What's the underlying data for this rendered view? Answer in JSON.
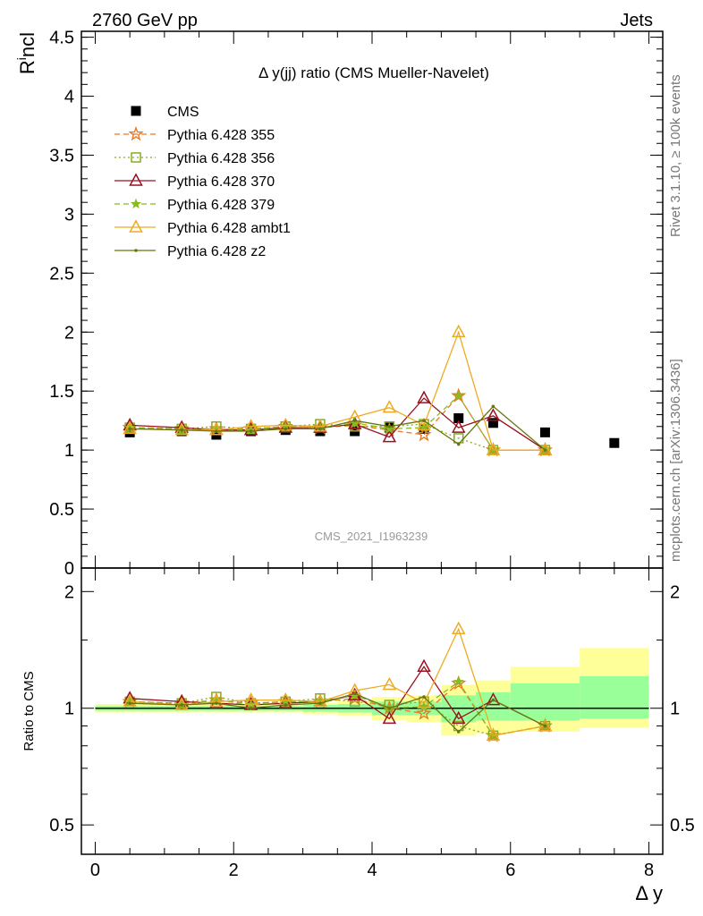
{
  "header": {
    "left": "2760 GeV pp",
    "right": "Jets"
  },
  "side_text": {
    "upper": "Rivet 3.1.10, ≥ 100k events",
    "lower": "mcplots.cern.ch [arXiv:1306.3436]"
  },
  "watermark": "CMS_2021_I1963239",
  "chart_data": [
    {
      "type": "line",
      "panel": "main",
      "title": "Δ y(jj) ratio (CMS Mueller-Navelet)",
      "xlabel": "Δ y",
      "ylabel": "R^i ncl",
      "xlim": [
        -0.2,
        8.2
      ],
      "ylim": [
        0,
        4.55
      ],
      "yticks": [
        "0",
        "0.5",
        "1",
        "1.5",
        "2",
        "2.5",
        "3",
        "3.5",
        "4",
        "4.5"
      ],
      "legend_position": "top-left",
      "series": [
        {
          "name": "CMS",
          "style": "square",
          "color": "#000000",
          "x": [
            0.5,
            1.25,
            1.75,
            2.25,
            2.75,
            3.25,
            3.75,
            4.25,
            4.75,
            5.25,
            5.75,
            6.5,
            7.5
          ],
          "y": [
            1.15,
            1.16,
            1.13,
            1.16,
            1.17,
            1.16,
            1.16,
            1.19,
            1.18,
            1.27,
            1.23,
            1.15,
            1.06
          ]
        },
        {
          "name": "Pythia 6.428 355",
          "style": "star",
          "dash": "dashed",
          "color": "#ee7722",
          "x": [
            0.5,
            1.25,
            1.75,
            2.25,
            2.75,
            3.25,
            3.75,
            4.25,
            4.75,
            5.25,
            5.75,
            6.5
          ],
          "y": [
            1.19,
            1.18,
            1.18,
            1.18,
            1.2,
            1.19,
            1.21,
            1.17,
            1.13,
            1.46,
            1.0,
            1.0
          ]
        },
        {
          "name": "Pythia 6.428 356",
          "style": "square-open",
          "dash": "dotted",
          "color": "#88aa22",
          "x": [
            0.5,
            1.25,
            1.75,
            2.25,
            2.75,
            3.25,
            3.75,
            4.25,
            4.75,
            5.25,
            5.75,
            6.5
          ],
          "y": [
            1.19,
            1.18,
            1.2,
            1.18,
            1.2,
            1.22,
            1.2,
            1.2,
            1.22,
            1.1,
            1.0,
            1.0
          ]
        },
        {
          "name": "Pythia 6.428 370",
          "style": "triangle-open",
          "dash": "solid",
          "color": "#991122",
          "x": [
            0.5,
            1.25,
            1.75,
            2.25,
            2.75,
            3.25,
            3.75,
            4.25,
            4.75,
            5.25,
            5.75,
            6.5
          ],
          "y": [
            1.21,
            1.19,
            1.17,
            1.17,
            1.19,
            1.19,
            1.22,
            1.11,
            1.44,
            1.19,
            1.29,
            1.0
          ]
        },
        {
          "name": "Pythia 6.428 379",
          "style": "star-small",
          "dash": "dashed",
          "color": "#88bb22",
          "x": [
            0.5,
            1.25,
            1.75,
            2.25,
            2.75,
            3.25,
            3.75,
            4.25,
            4.75,
            5.25,
            5.75,
            6.5
          ],
          "y": [
            1.19,
            1.17,
            1.18,
            1.17,
            1.2,
            1.19,
            1.23,
            1.18,
            1.19,
            1.46,
            1.0,
            1.0
          ]
        },
        {
          "name": "Pythia 6.428 ambt1",
          "style": "triangle-open",
          "dash": "solid",
          "color": "#eeaa22",
          "x": [
            0.5,
            1.25,
            1.75,
            2.25,
            2.75,
            3.25,
            3.75,
            4.25,
            4.75,
            5.25,
            5.75,
            6.5
          ],
          "y": [
            1.18,
            1.17,
            1.17,
            1.2,
            1.21,
            1.2,
            1.28,
            1.36,
            1.21,
            2.0,
            1.0,
            1.0
          ]
        },
        {
          "name": "Pythia 6.428 z2",
          "style": "dot",
          "dash": "solid",
          "color": "#667711",
          "x": [
            0.5,
            1.25,
            1.75,
            2.25,
            2.75,
            3.25,
            3.75,
            4.25,
            4.75,
            5.25,
            5.75,
            6.5
          ],
          "y": [
            1.18,
            1.17,
            1.16,
            1.16,
            1.18,
            1.18,
            1.25,
            1.2,
            1.25,
            1.05,
            1.37,
            1.0
          ]
        }
      ]
    },
    {
      "type": "line",
      "panel": "ratio",
      "ylabel": "Ratio to CMS",
      "xlabel": "Δ y",
      "xlim": [
        -0.2,
        8.2
      ],
      "ylim": [
        0.42,
        2.3
      ],
      "yticks": [
        "0.5",
        "1",
        "2"
      ],
      "xticks": [
        "0",
        "2",
        "4",
        "6",
        "8"
      ],
      "uncertainty_bands": {
        "x_edges": [
          0,
          1,
          1.5,
          2,
          2.5,
          3,
          3.5,
          4,
          4.5,
          5,
          5.5,
          6,
          7,
          8
        ],
        "green": [
          [
            0.985,
            1.015
          ],
          [
            0.985,
            1.015
          ],
          [
            0.985,
            1.015
          ],
          [
            0.985,
            1.015
          ],
          [
            0.985,
            1.015
          ],
          [
            0.98,
            1.02
          ],
          [
            0.975,
            1.025
          ],
          [
            0.96,
            1.04
          ],
          [
            0.96,
            1.04
          ],
          [
            0.92,
            1.08
          ],
          [
            0.93,
            1.1
          ],
          [
            0.93,
            1.16
          ],
          [
            0.94,
            1.21
          ]
        ],
        "yellow": [
          [
            0.975,
            1.025
          ],
          [
            0.975,
            1.025
          ],
          [
            0.975,
            1.025
          ],
          [
            0.975,
            1.025
          ],
          [
            0.975,
            1.025
          ],
          [
            0.965,
            1.035
          ],
          [
            0.955,
            1.045
          ],
          [
            0.93,
            1.07
          ],
          [
            0.92,
            1.08
          ],
          [
            0.85,
            1.15
          ],
          [
            0.86,
            1.18
          ],
          [
            0.87,
            1.28
          ],
          [
            0.89,
            1.43
          ]
        ]
      },
      "series": [
        {
          "name": "Pythia 6.428 355",
          "x": [
            0.5,
            1.25,
            1.75,
            2.25,
            2.75,
            3.25,
            3.75,
            4.25,
            4.75,
            5.25,
            5.75,
            6.5
          ],
          "y": [
            1.04,
            1.03,
            1.05,
            1.03,
            1.04,
            1.04,
            1.06,
            1.0,
            0.97,
            1.16,
            0.85,
            0.9
          ]
        },
        {
          "name": "Pythia 6.428 356",
          "x": [
            0.5,
            1.25,
            1.75,
            2.25,
            2.75,
            3.25,
            3.75,
            4.25,
            4.75,
            5.25,
            5.75,
            6.5
          ],
          "y": [
            1.04,
            1.03,
            1.07,
            1.03,
            1.04,
            1.06,
            1.04,
            1.02,
            1.04,
            0.9,
            0.85,
            0.9
          ]
        },
        {
          "name": "Pythia 6.428 370",
          "x": [
            0.5,
            1.25,
            1.75,
            2.25,
            2.75,
            3.25,
            3.75,
            4.25,
            4.75,
            5.25,
            5.75,
            6.5
          ],
          "y": [
            1.06,
            1.04,
            1.03,
            1.02,
            1.03,
            1.04,
            1.08,
            0.94,
            1.28,
            0.94,
            1.05,
            0.9
          ]
        },
        {
          "name": "Pythia 6.428 379",
          "x": [
            0.5,
            1.25,
            1.75,
            2.25,
            2.75,
            3.25,
            3.75,
            4.25,
            4.75,
            5.25,
            5.75,
            6.5
          ],
          "y": [
            1.04,
            1.02,
            1.05,
            1.02,
            1.04,
            1.04,
            1.08,
            1.0,
            1.01,
            1.17,
            0.85,
            0.9
          ]
        },
        {
          "name": "Pythia 6.428 ambt1",
          "x": [
            0.5,
            1.25,
            1.75,
            2.25,
            2.75,
            3.25,
            3.75,
            4.25,
            4.75,
            5.25,
            5.75,
            6.5
          ],
          "y": [
            1.04,
            1.02,
            1.04,
            1.05,
            1.05,
            1.04,
            1.11,
            1.15,
            1.03,
            1.6,
            0.85,
            0.9
          ]
        },
        {
          "name": "Pythia 6.428 z2",
          "x": [
            0.5,
            1.25,
            1.75,
            2.25,
            2.75,
            3.25,
            3.75,
            4.25,
            4.75,
            5.25,
            5.75,
            6.5
          ],
          "y": [
            1.03,
            1.02,
            1.03,
            1.0,
            1.02,
            1.03,
            1.09,
            1.0,
            1.07,
            0.87,
            1.05,
            0.9
          ]
        }
      ]
    }
  ]
}
